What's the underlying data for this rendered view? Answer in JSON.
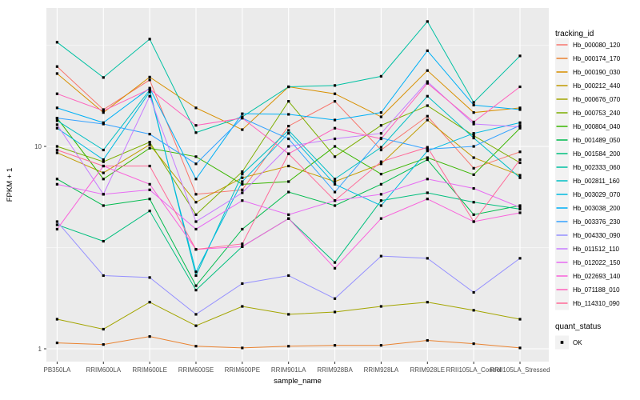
{
  "chart_data": {
    "type": "line",
    "title": "",
    "xlabel": "sample_name",
    "ylabel": "FPKM + 1",
    "y_scale": "log10",
    "ylim": [
      1,
      48
    ],
    "y_major_ticks": [
      1,
      10
    ],
    "y_minor_ticks": [
      3.162,
      31.62
    ],
    "grid": "white major and minor gridlines on gray panel",
    "legend_position": "right",
    "panel_background": "#EBEBEB",
    "gridline_color": "#FFFFFF",
    "marker": "black-square",
    "marker_color": "#000000",
    "legend_key_background": "#F2F2F2",
    "legend_title": "tracking_id",
    "quant_legend_title": "quant_status",
    "quant_legend_items": [
      "OK"
    ],
    "categories": [
      "PB350LA",
      "RRIM600LA",
      "RRIM600LE",
      "RRIM600SE",
      "RRIM600PE",
      "RRIM901LA",
      "RRIM928BA",
      "RRIM928LA",
      "RRIM928LE",
      "RRII105LA_Control",
      "RRII105LA_Stressed"
    ],
    "series": [
      {
        "name": "Hb_000080_120",
        "color": "#F8766D",
        "values": [
          24.8,
          15.2,
          21.3,
          5.8,
          6.1,
          12.6,
          16.7,
          9.6,
          14.1,
          7.8,
          9.4
        ]
      },
      {
        "name": "Hb_000174_170",
        "color": "#EA8331",
        "values": [
          1.07,
          1.05,
          1.15,
          1.03,
          1.01,
          1.03,
          1.04,
          1.04,
          1.1,
          1.06,
          1.01
        ]
      },
      {
        "name": "Hb_000190_030",
        "color": "#D89000",
        "values": [
          22.9,
          14.7,
          22.0,
          15.5,
          12.1,
          19.7,
          18.2,
          14.0,
          23.7,
          14.7,
          15.5
        ]
      },
      {
        "name": "Hb_000212_440",
        "color": "#C09B00",
        "values": [
          9.3,
          7.4,
          10.2,
          5.3,
          7.0,
          8.0,
          6.7,
          8.2,
          13.5,
          8.8,
          7.2
        ]
      },
      {
        "name": "Hb_000676_070",
        "color": "#A3A500",
        "values": [
          1.4,
          1.25,
          1.7,
          1.3,
          1.62,
          1.48,
          1.52,
          1.62,
          1.7,
          1.55,
          1.4
        ]
      },
      {
        "name": "Hb_000753_240",
        "color": "#7CAE00",
        "values": [
          10.0,
          8.4,
          10.5,
          4.6,
          7.5,
          16.7,
          8.9,
          12.7,
          15.9,
          11.3,
          8.3
        ]
      },
      {
        "name": "Hb_000804_040",
        "color": "#39B600",
        "values": [
          13.8,
          6.9,
          9.8,
          8.9,
          6.5,
          6.7,
          10.0,
          7.3,
          8.8,
          7.25,
          12.3
        ]
      },
      {
        "name": "Hb_001489_050",
        "color": "#00BB4E",
        "values": [
          6.9,
          5.1,
          5.5,
          2.05,
          3.9,
          5.95,
          5.1,
          6.5,
          8.6,
          4.6,
          5.1
        ]
      },
      {
        "name": "Hb_001584_200",
        "color": "#00BF7D",
        "values": [
          4.1,
          3.4,
          4.8,
          1.95,
          3.2,
          4.4,
          2.67,
          5.4,
          5.9,
          5.3,
          4.9
        ]
      },
      {
        "name": "Hb_002333_060",
        "color": "#00C1A3",
        "values": [
          32.7,
          21.9,
          33.9,
          11.7,
          14.0,
          19.7,
          20.0,
          22.2,
          41.4,
          16.5,
          28.0
        ]
      },
      {
        "name": "Hb_002811_160",
        "color": "#00BFC4",
        "values": [
          13.4,
          9.6,
          19.0,
          2.3,
          7.3,
          12.0,
          6.9,
          9.9,
          17.7,
          11.0,
          7.0
        ]
      },
      {
        "name": "Hb_003029_070",
        "color": "#00BAE0",
        "values": [
          12.3,
          8.6,
          18.6,
          2.4,
          6.7,
          11.6,
          6.5,
          5.1,
          9.5,
          11.6,
          13.1
        ]
      },
      {
        "name": "Hb_003038_200",
        "color": "#00B0F6",
        "values": [
          15.5,
          13.1,
          19.4,
          6.9,
          14.5,
          14.4,
          13.5,
          14.7,
          29.7,
          16.0,
          15.2
        ]
      },
      {
        "name": "Hb_003376_230",
        "color": "#35A2FF",
        "values": [
          13.8,
          12.9,
          11.5,
          8.2,
          13.8,
          10.9,
          5.95,
          11.0,
          9.7,
          10.0,
          12.7
        ]
      },
      {
        "name": "Hb_004330_090",
        "color": "#9590FF",
        "values": [
          4.25,
          2.3,
          2.25,
          1.48,
          2.1,
          2.3,
          1.77,
          2.87,
          2.8,
          1.9,
          2.8
        ]
      },
      {
        "name": "Hb_011512_110",
        "color": "#C77CFF",
        "values": [
          12.8,
          5.8,
          17.7,
          4.25,
          5.9,
          10.0,
          10.9,
          11.6,
          20.9,
          12.9,
          12.5
        ]
      },
      {
        "name": "Hb_012022_150",
        "color": "#E76BF3",
        "values": [
          6.5,
          5.8,
          6.1,
          3.9,
          5.4,
          4.6,
          5.4,
          5.8,
          6.9,
          6.2,
          5.0
        ]
      },
      {
        "name": "Hb_022693_140",
        "color": "#FA62DB",
        "values": [
          3.9,
          8.0,
          6.5,
          3.1,
          3.2,
          4.4,
          2.5,
          4.4,
          5.5,
          4.25,
          4.7
        ]
      },
      {
        "name": "Hb_071188_010",
        "color": "#FF62BC",
        "values": [
          18.2,
          15.0,
          19.2,
          12.7,
          13.8,
          9.2,
          12.3,
          10.9,
          20.5,
          13.2,
          19.7
        ]
      },
      {
        "name": "Hb_114310_090",
        "color": "#FF6A98",
        "values": [
          9.6,
          8.0,
          8.0,
          3.1,
          3.3,
          9.2,
          5.4,
          8.4,
          9.9,
          4.25,
          8.6
        ]
      }
    ]
  }
}
